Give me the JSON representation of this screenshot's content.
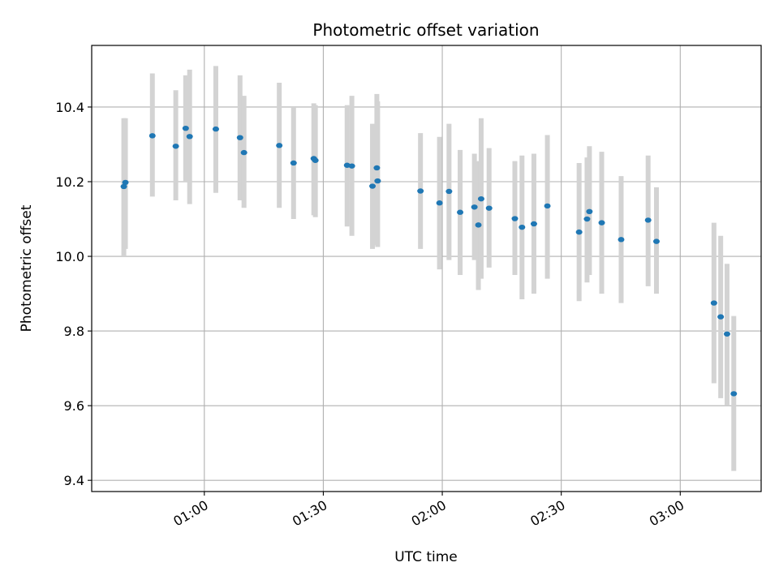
{
  "chart_data": {
    "type": "scatter",
    "title": "Photometric offset variation",
    "xlabel": "UTC time",
    "ylabel": "Photometric offset",
    "ylim": [
      9.37,
      10.565
    ],
    "yticks": [
      9.4,
      9.6,
      9.8,
      10.0,
      10.2,
      10.4
    ],
    "ytick_labels": [
      "9.4",
      "9.6",
      "9.8",
      "10.0",
      "10.2",
      "10.4"
    ],
    "xlim_minutes": [
      31.6,
      200.4
    ],
    "xticks_minutes": [
      60,
      90,
      120,
      150,
      180
    ],
    "xtick_labels": [
      "01:00",
      "01:30",
      "02:00",
      "02:30",
      "03:00"
    ],
    "grid": true,
    "point_color": "#1f77b4",
    "errorbar_color": "#d3d3d3",
    "series": [
      {
        "name": "offset",
        "x_minutes": [
          39.7,
          40.1,
          46.9,
          52.8,
          55.3,
          56.3,
          62.9,
          69.0,
          70.0,
          78.9,
          82.5,
          87.6,
          88.0,
          96.0,
          97.2,
          102.4,
          103.5,
          103.7,
          114.5,
          119.3,
          121.7,
          124.5,
          128.1,
          129.1,
          129.8,
          131.8,
          138.3,
          140.1,
          143.1,
          146.5,
          154.5,
          156.5,
          157.1,
          160.2,
          165.1,
          171.9,
          174.0,
          188.5,
          190.2,
          191.8,
          193.5
        ],
        "y": [
          10.187,
          10.198,
          10.323,
          10.295,
          10.343,
          10.321,
          10.341,
          10.318,
          10.278,
          10.297,
          10.25,
          10.262,
          10.257,
          10.244,
          10.242,
          10.188,
          10.237,
          10.202,
          10.175,
          10.143,
          10.174,
          10.118,
          10.132,
          10.084,
          10.154,
          10.129,
          10.101,
          10.078,
          10.087,
          10.135,
          10.065,
          10.1,
          10.12,
          10.09,
          10.045,
          10.097,
          10.04,
          9.875,
          9.838,
          9.792,
          9.632
        ],
        "err_low": [
          10.0,
          10.02,
          10.16,
          10.15,
          10.2,
          10.14,
          10.17,
          10.15,
          10.13,
          10.13,
          10.1,
          10.11,
          10.105,
          10.08,
          10.055,
          10.02,
          10.03,
          10.025,
          10.02,
          9.965,
          9.99,
          9.95,
          9.99,
          9.91,
          9.94,
          9.97,
          9.95,
          9.885,
          9.9,
          9.94,
          9.88,
          9.93,
          9.95,
          9.9,
          9.875,
          9.92,
          9.9,
          9.66,
          9.62,
          9.6,
          9.425
        ],
        "err_high": [
          10.37,
          10.37,
          10.49,
          10.445,
          10.485,
          10.5,
          10.51,
          10.485,
          10.43,
          10.465,
          10.4,
          10.41,
          10.405,
          10.405,
          10.43,
          10.355,
          10.435,
          10.415,
          10.33,
          10.32,
          10.355,
          10.285,
          10.275,
          10.255,
          10.37,
          10.29,
          10.255,
          10.27,
          10.275,
          10.325,
          10.25,
          10.265,
          10.295,
          10.28,
          10.215,
          10.27,
          10.185,
          10.09,
          10.055,
          9.98,
          9.84
        ]
      }
    ]
  }
}
